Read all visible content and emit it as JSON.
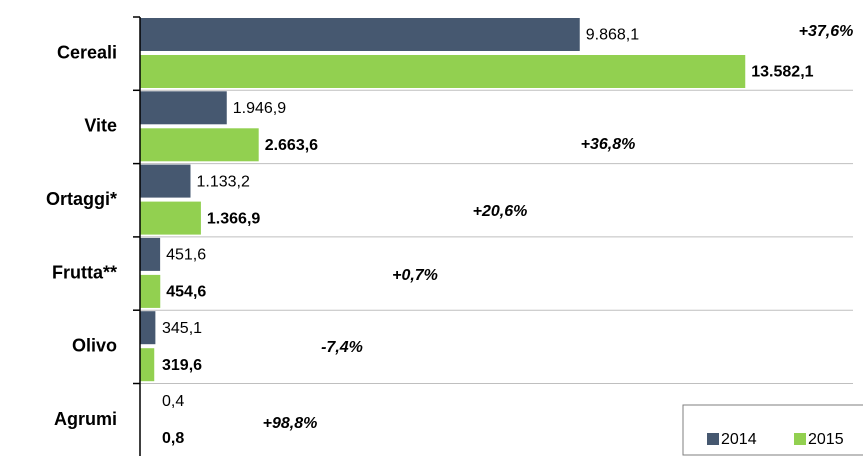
{
  "chart_data": {
    "type": "hbar",
    "categories": [
      "Cereali",
      "Vite",
      "Ortaggi*",
      "Frutta**",
      "Olivo",
      "Agrumi"
    ],
    "series": [
      {
        "name": "2014",
        "color": "#465870",
        "values": [
          9868.1,
          1946.9,
          1133.2,
          451.6,
          345.1,
          0.4
        ],
        "value_labels": [
          "9.868,1",
          "1.946,9",
          "1.133,2",
          "451,6",
          "345,1",
          "0,4"
        ]
      },
      {
        "name": "2015",
        "color": "#92d050",
        "values": [
          13582.1,
          2663.6,
          1366.9,
          454.6,
          319.6,
          0.8
        ],
        "value_labels": [
          "13.582,1",
          "2.663,6",
          "1.366,9",
          "454,6",
          "319,6",
          "0,8"
        ]
      }
    ],
    "annotations": [
      "+37,6%",
      "+36,8%",
      "+20,6%",
      "+0,7%",
      "-7,4%",
      "+98,8%"
    ],
    "xlim": [
      0,
      16000
    ],
    "legend": "bottom-right"
  }
}
